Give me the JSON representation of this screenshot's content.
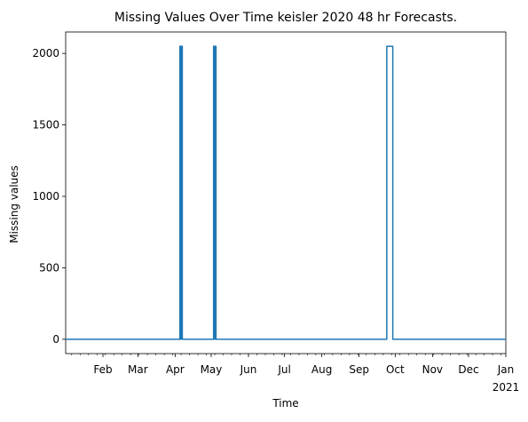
{
  "chart_data": {
    "type": "line",
    "title": "Missing Values Over Time keisler 2020 48 hr Forecasts.",
    "xlabel": "Time",
    "ylabel": "Missing values",
    "xlim": [
      "2020-01-01",
      "2021-01-01"
    ],
    "ylim": [
      -100,
      2150
    ],
    "yticks": [
      0,
      500,
      1000,
      1500,
      2000
    ],
    "xticks": [
      {
        "date": "2020-02-01",
        "label": "Feb"
      },
      {
        "date": "2020-03-01",
        "label": "Mar"
      },
      {
        "date": "2020-04-01",
        "label": "Apr"
      },
      {
        "date": "2020-05-01",
        "label": "May"
      },
      {
        "date": "2020-06-01",
        "label": "Jun"
      },
      {
        "date": "2020-07-01",
        "label": "Jul"
      },
      {
        "date": "2020-08-01",
        "label": "Aug"
      },
      {
        "date": "2020-09-01",
        "label": "Sep"
      },
      {
        "date": "2020-10-01",
        "label": "Oct"
      },
      {
        "date": "2020-11-01",
        "label": "Nov"
      },
      {
        "date": "2020-12-01",
        "label": "Dec"
      },
      {
        "date": "2021-01-01",
        "label": "Jan",
        "sublabel": "2021"
      }
    ],
    "grid": false,
    "series": [
      {
        "color": "#1f77b4",
        "points": [
          {
            "x": "2020-01-01",
            "y": 0
          },
          {
            "x": "2020-04-05",
            "y": 0
          },
          {
            "x": "2020-04-05",
            "y": 2050
          },
          {
            "x": "2020-04-06",
            "y": 2050
          },
          {
            "x": "2020-04-06",
            "y": 0
          },
          {
            "x": "2020-04-06",
            "y": 2050
          },
          {
            "x": "2020-04-07",
            "y": 2050
          },
          {
            "x": "2020-04-07",
            "y": 0
          },
          {
            "x": "2020-05-03",
            "y": 0
          },
          {
            "x": "2020-05-03",
            "y": 2050
          },
          {
            "x": "2020-05-04",
            "y": 2050
          },
          {
            "x": "2020-05-04",
            "y": 0
          },
          {
            "x": "2020-05-04",
            "y": 2050
          },
          {
            "x": "2020-05-05",
            "y": 2050
          },
          {
            "x": "2020-05-05",
            "y": 0
          },
          {
            "x": "2020-09-24",
            "y": 0
          },
          {
            "x": "2020-09-24",
            "y": 2050
          },
          {
            "x": "2020-09-29",
            "y": 2050
          },
          {
            "x": "2020-09-29",
            "y": 0
          },
          {
            "x": "2021-01-01",
            "y": 0
          }
        ]
      }
    ]
  }
}
